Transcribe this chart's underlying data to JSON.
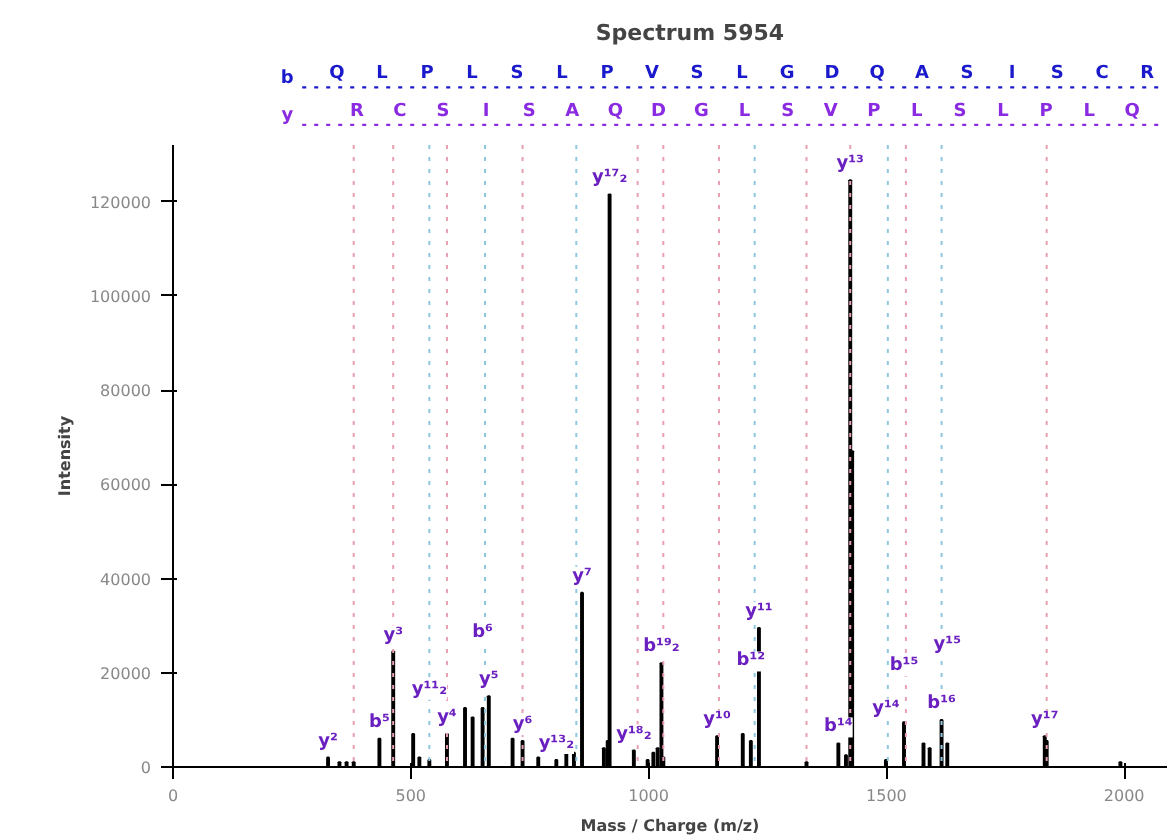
{
  "chart_data": {
    "type": "bar",
    "title": "Spectrum 5954",
    "xlabel": "Mass / Charge (m/z)",
    "ylabel": "Intensity",
    "color": "#000000",
    "x": [
      326,
      350,
      365,
      380,
      434,
      463,
      505,
      518,
      539,
      576,
      614,
      630,
      651,
      664,
      714,
      735,
      768,
      806,
      827,
      843,
      860,
      906,
      914,
      918,
      969,
      998,
      1010,
      1019,
      1027,
      1031,
      1144,
      1198,
      1215,
      1232,
      1332,
      1399,
      1415,
      1424,
      1428,
      1499,
      1537,
      1578,
      1591,
      1616,
      1628,
      1833,
      1837,
      1992
    ],
    "values": [
      2000,
      1000,
      1000,
      1000,
      6000,
      24500,
      7000,
      2000,
      1500,
      7000,
      12500,
      10500,
      12500,
      15000,
      6000,
      5500,
      2000,
      1500,
      3000,
      3000,
      37000,
      4000,
      5500,
      121500,
      3500,
      1500,
      3000,
      4000,
      22000,
      2000,
      6500,
      7000,
      5500,
      29500,
      1000,
      5000,
      2500,
      124500,
      67000,
      1500,
      9500,
      5000,
      4000,
      10000,
      5000,
      6500,
      5500,
      1000
    ],
    "xlim": [
      0,
      2090
    ],
    "xticks": [
      0,
      500,
      1000,
      1500,
      2000
    ],
    "ylim": [
      0,
      132000
    ],
    "yticks": [
      0,
      20000,
      40000,
      60000,
      80000,
      100000,
      120000
    ],
    "grid": false,
    "ref_lines": [
      {
        "axis": "x",
        "value": 380,
        "color": "#e8a0b0",
        "line_style": "dotted"
      },
      {
        "axis": "x",
        "value": 463,
        "color": "#e8a0b0",
        "line_style": "dotted"
      },
      {
        "axis": "x",
        "value": 576,
        "color": "#e8a0b0",
        "line_style": "dotted"
      },
      {
        "axis": "x",
        "value": 735,
        "color": "#e8a0b0",
        "line_style": "dotted"
      },
      {
        "axis": "x",
        "value": 977,
        "color": "#e8a0b0",
        "line_style": "dotted"
      },
      {
        "axis": "x",
        "value": 1031,
        "color": "#e8a0b0",
        "line_style": "dotted"
      },
      {
        "axis": "x",
        "value": 1148,
        "color": "#e8a0b0",
        "line_style": "dotted"
      },
      {
        "axis": "x",
        "value": 1332,
        "color": "#e8a0b0",
        "line_style": "dotted"
      },
      {
        "axis": "x",
        "value": 1424,
        "color": "#e8a0b0",
        "line_style": "dotted"
      },
      {
        "axis": "x",
        "value": 1541,
        "color": "#e8a0b0",
        "line_style": "dotted"
      },
      {
        "axis": "x",
        "value": 1837,
        "color": "#e8a0b0",
        "line_style": "dotted"
      },
      {
        "axis": "x",
        "value": 539,
        "color": "#8ec8e0",
        "line_style": "dotted"
      },
      {
        "axis": "x",
        "value": 656,
        "color": "#8ec8e0",
        "line_style": "dotted"
      },
      {
        "axis": "x",
        "value": 848,
        "color": "#8ec8e0",
        "line_style": "dotted"
      },
      {
        "axis": "x",
        "value": 1223,
        "color": "#8ec8e0",
        "line_style": "dotted"
      },
      {
        "axis": "x",
        "value": 1503,
        "color": "#8ec8e0",
        "line_style": "dotted"
      },
      {
        "axis": "x",
        "value": 1616,
        "color": "#8ec8e0",
        "line_style": "dotted"
      }
    ],
    "annotations": [
      "b",
      "Q L P L S L P V S L G D Q A S I S C R",
      "y",
      "R C S I S A Q D G L S V P L S L P L Q",
      {
        "text": "y²",
        "x": 326,
        "y": 2000
      },
      {
        "text": "b⁵",
        "x": 434,
        "y": 6000
      },
      {
        "text": "y³",
        "x": 463,
        "y": 24500
      },
      {
        "text": "y¹¹₂",
        "x": 539,
        "y": 13000
      },
      {
        "text": "y⁴",
        "x": 576,
        "y": 7000
      },
      {
        "text": "b⁶",
        "x": 651,
        "y": 25000
      },
      {
        "text": "y⁵",
        "x": 664,
        "y": 15000
      },
      {
        "text": "y⁶",
        "x": 735,
        "y": 5500
      },
      {
        "text": "y¹³₂",
        "x": 806,
        "y": 1500
      },
      {
        "text": "y⁷",
        "x": 860,
        "y": 37000
      },
      {
        "text": "y¹⁷₂",
        "x": 918,
        "y": 121500
      },
      {
        "text": "y¹⁸₂",
        "x": 969,
        "y": 3500
      },
      {
        "text": "b¹⁹₂",
        "x": 1027,
        "y": 22000
      },
      {
        "text": "y¹⁰",
        "x": 1144,
        "y": 6500
      },
      {
        "text": "b¹²",
        "x": 1215,
        "y": 19000
      },
      {
        "text": "y¹¹",
        "x": 1232,
        "y": 29500
      },
      {
        "text": "b¹⁴",
        "x": 1399,
        "y": 5000
      },
      {
        "text": "y¹³",
        "x": 1424,
        "y": 124500
      },
      {
        "text": "y¹⁴",
        "x": 1499,
        "y": 9000
      },
      {
        "text": "b¹⁵",
        "x": 1537,
        "y": 18000
      },
      {
        "text": "b¹⁶",
        "x": 1616,
        "y": 10000
      },
      {
        "text": "y¹⁵",
        "x": 1628,
        "y": 22500
      },
      {
        "text": "y¹⁷",
        "x": 1833,
        "y": 6500
      }
    ]
  }
}
